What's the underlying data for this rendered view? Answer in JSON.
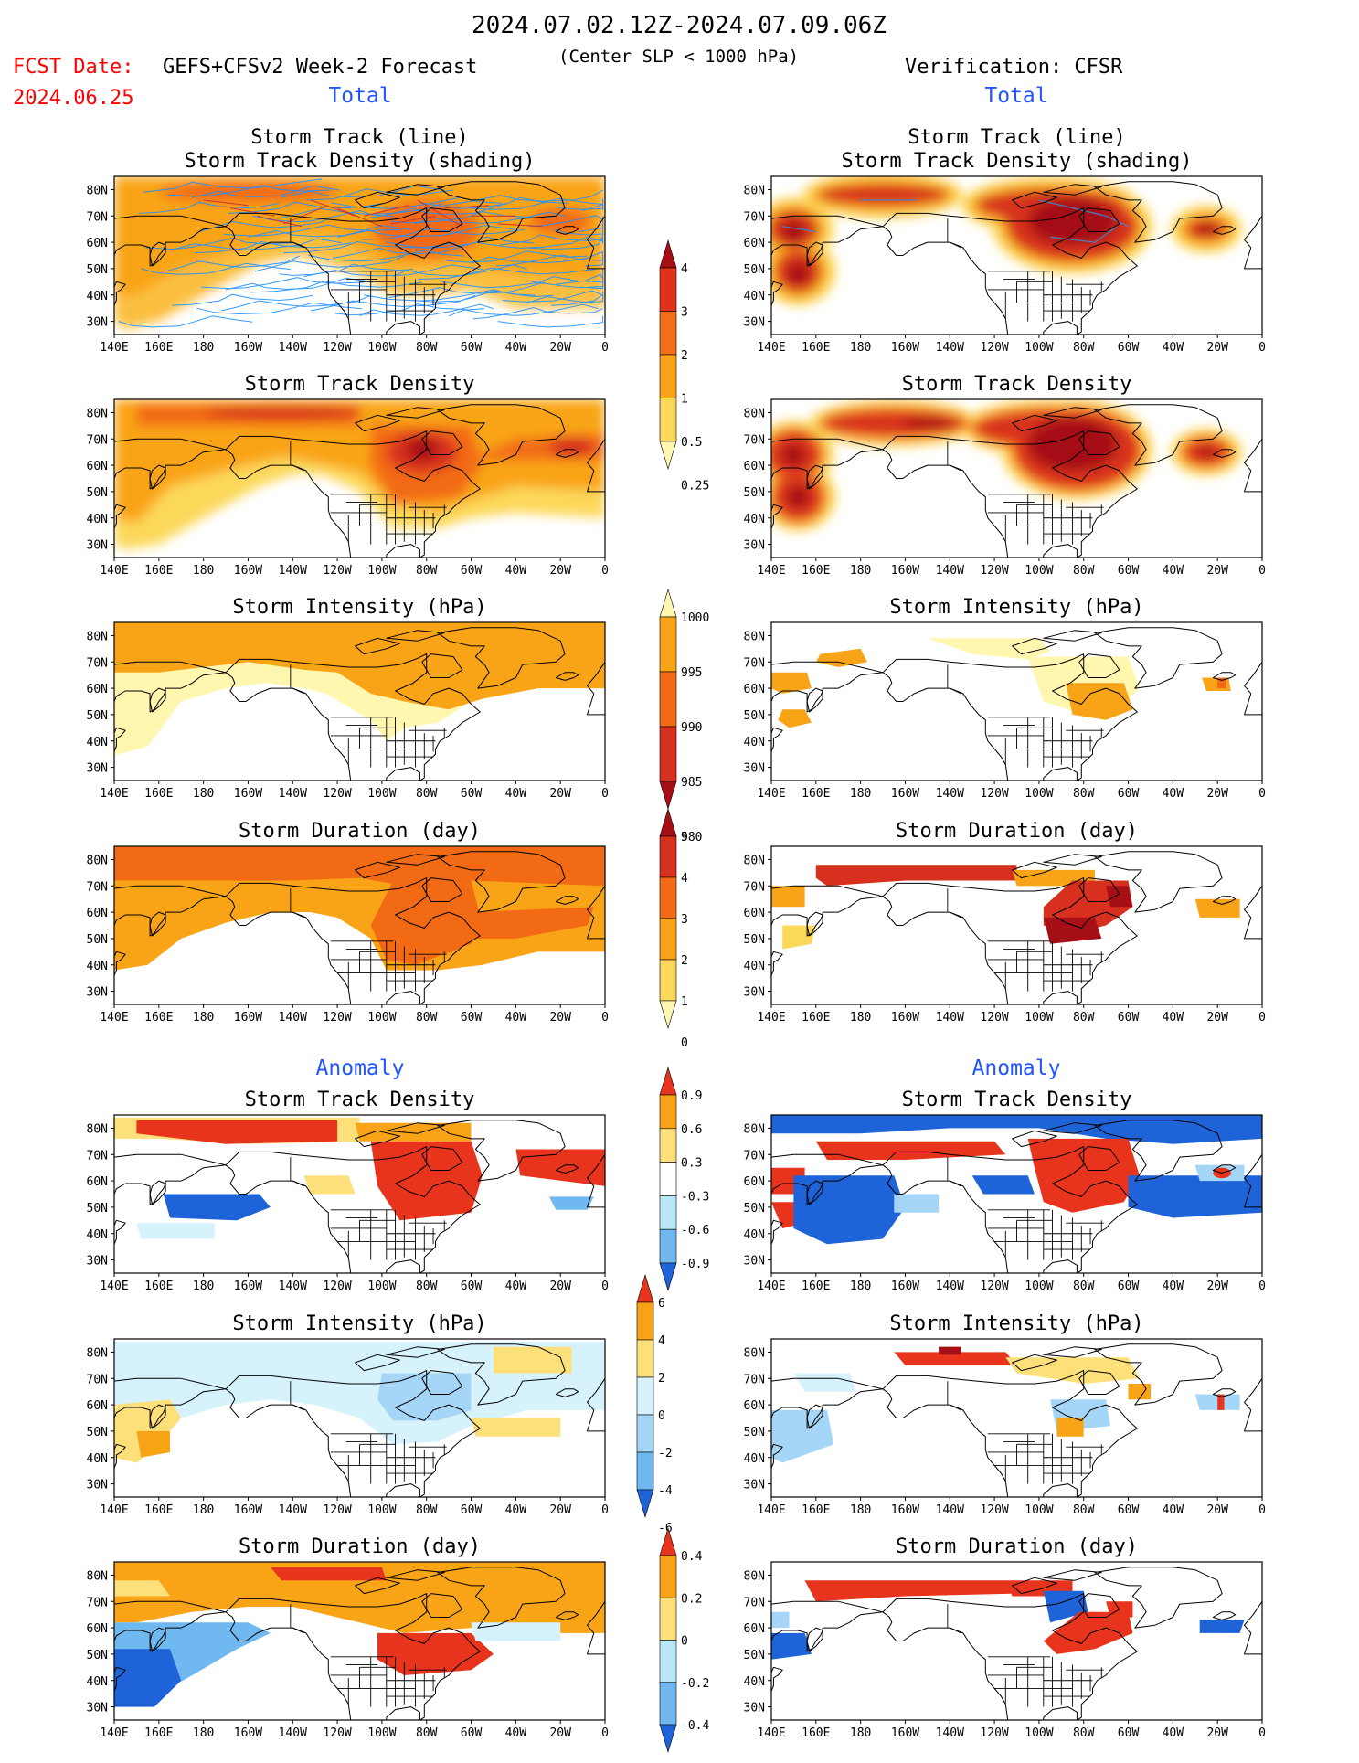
{
  "header": {
    "period": "2024.07.02.12Z-2024.07.09.06Z",
    "fcst_label": "FCST Date:",
    "fcst_date": "2024.06.25",
    "forecast_title": "GEFS+CFSv2 Week-2 Forecast",
    "criterion": "(Center SLP < 1000 hPa)",
    "verification": "Verification: CFSR"
  },
  "sections": {
    "total": "Total",
    "anomaly": "Anomaly"
  },
  "axes": {
    "lon_ticks": [
      "140E",
      "160E",
      "180",
      "160W",
      "140W",
      "120W",
      "100W",
      "80W",
      "60W",
      "40W",
      "20W",
      "0"
    ],
    "lat_ticks": [
      "80N",
      "70N",
      "60N",
      "50N",
      "40N",
      "30N"
    ]
  },
  "rows": [
    {
      "id": "track",
      "title_line1": "Storm Track (line)",
      "title_line2": "Storm Track Density (shading)"
    },
    {
      "id": "density",
      "title_line1": "Storm Track Density"
    },
    {
      "id": "intensity",
      "title_line1": "Storm Intensity (hPa)"
    },
    {
      "id": "duration",
      "title_line1": "Storm Duration (day)"
    },
    {
      "id": "anom_density",
      "title_line1": "Storm Track Density"
    },
    {
      "id": "anom_intensity",
      "title_line1": "Storm Intensity (hPa)"
    },
    {
      "id": "anom_duration",
      "title_line1": "Storm Duration (day)"
    }
  ],
  "colorbars": [
    {
      "id": "cb-density",
      "labels": [
        "4",
        "3",
        "2",
        "1",
        "0.5",
        "0.25"
      ],
      "colors": [
        "#a50f15",
        "#e03219",
        "#f46d17",
        "#f9a417",
        "#fcd85a",
        "#fff6b0"
      ]
    },
    {
      "id": "cb-intensity",
      "labels": [
        "1000",
        "995",
        "990",
        "985",
        "980"
      ],
      "colors": [
        "#fff6b0",
        "#f9a417",
        "#f26a14",
        "#d7301f",
        "#a50f15"
      ]
    },
    {
      "id": "cb-duration",
      "labels": [
        "5",
        "4",
        "3",
        "2",
        "1",
        "0"
      ],
      "colors": [
        "#a50f15",
        "#d7301f",
        "#f26a14",
        "#f9a417",
        "#fcd85a",
        "#fff6b0"
      ]
    },
    {
      "id": "cb-anom-density",
      "labels": [
        "0.9",
        "0.6",
        "0.3",
        "-0.3",
        "-0.6",
        "-0.9"
      ],
      "colors": [
        "#e8341c",
        "#f9a417",
        "#fde07a",
        "#ffffff",
        "#b8e8f8",
        "#6fb8f0",
        "#1f63d8"
      ]
    },
    {
      "id": "cb-anom-intensity",
      "labels": [
        "6",
        "4",
        "2",
        "0",
        "-2",
        "-4",
        "-6"
      ],
      "colors": [
        "#e8341c",
        "#f9a417",
        "#fde07a",
        "#d6f2fb",
        "#a6d6f7",
        "#6fb8f0",
        "#1f63d8"
      ]
    },
    {
      "id": "cb-anom-duration",
      "labels": [
        "0.4",
        "0.2",
        "0",
        "-0.2",
        "-0.4"
      ],
      "colors": [
        "#e8341c",
        "#f9a417",
        "#fde07a",
        "#b8e8f8",
        "#6fb8f0",
        "#1f63d8"
      ]
    }
  ],
  "palette": {
    "title_red": "#ff0000",
    "section_blue": "#2255ff",
    "track_line": "#1e90ff"
  }
}
